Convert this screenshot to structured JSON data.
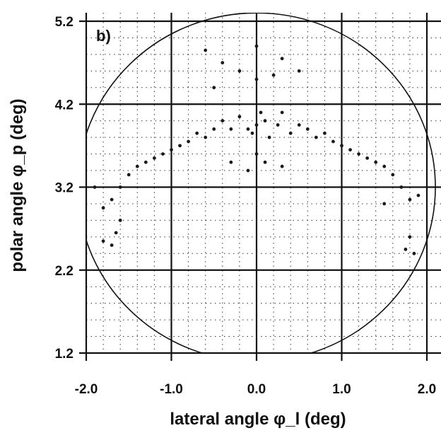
{
  "chart_data": {
    "type": "scatter",
    "panel_label": "b)",
    "xlabel": "lateral angle φ_l (deg)",
    "ylabel": "polar angle φ_p (deg)",
    "xlim": [
      -2.0,
      2.0
    ],
    "ylim": [
      1.2,
      5.2
    ],
    "x_ticks": [
      "-2.0",
      "-1.0",
      "0.0",
      "1.0",
      "2.0"
    ],
    "y_ticks": [
      "1.2",
      "2.2",
      "3.2",
      "4.2",
      "5.2"
    ],
    "major_grid": true,
    "minor_grid": "dotted",
    "circle": {
      "center": [
        0.0,
        3.2
      ],
      "radius": 2.1
    },
    "point_color": "#1a1a1a",
    "line_color": "#111111",
    "series": [
      {
        "values": [
          [
            0.0,
            3.95
          ],
          [
            0.1,
            4.0
          ],
          [
            -0.1,
            3.9
          ],
          [
            0.05,
            4.1
          ],
          [
            -0.05,
            3.85
          ],
          [
            0.15,
            3.8
          ],
          [
            -0.2,
            4.05
          ],
          [
            0.25,
            3.95
          ],
          [
            -0.3,
            3.9
          ],
          [
            0.3,
            4.1
          ],
          [
            -0.4,
            4.0
          ],
          [
            0.4,
            3.85
          ],
          [
            -0.5,
            3.9
          ],
          [
            0.5,
            3.95
          ],
          [
            -0.6,
            3.8
          ],
          [
            0.6,
            3.9
          ],
          [
            -0.7,
            3.85
          ],
          [
            0.7,
            3.8
          ],
          [
            -0.8,
            3.75
          ],
          [
            0.8,
            3.85
          ],
          [
            -0.9,
            3.7
          ],
          [
            0.9,
            3.75
          ],
          [
            -1.0,
            3.65
          ],
          [
            1.0,
            3.7
          ],
          [
            -1.1,
            3.6
          ],
          [
            1.1,
            3.65
          ],
          [
            -1.2,
            3.55
          ],
          [
            1.2,
            3.6
          ],
          [
            -1.3,
            3.5
          ],
          [
            1.3,
            3.55
          ],
          [
            -1.4,
            3.45
          ],
          [
            1.4,
            3.5
          ],
          [
            -1.5,
            3.35
          ],
          [
            1.5,
            3.45
          ],
          [
            -1.6,
            3.2
          ],
          [
            1.6,
            3.35
          ],
          [
            -1.7,
            3.05
          ],
          [
            1.7,
            3.2
          ],
          [
            -1.8,
            2.95
          ],
          [
            1.8,
            3.05
          ],
          [
            -1.9,
            3.2
          ],
          [
            1.9,
            3.1
          ],
          [
            0.0,
            4.5
          ],
          [
            -0.2,
            4.6
          ],
          [
            0.2,
            4.55
          ],
          [
            -0.4,
            4.7
          ],
          [
            0.3,
            4.75
          ],
          [
            -0.6,
            4.85
          ],
          [
            0.0,
            4.9
          ],
          [
            0.5,
            4.6
          ],
          [
            -0.5,
            4.4
          ],
          [
            0.1,
            3.5
          ],
          [
            -0.1,
            3.4
          ],
          [
            0.3,
            3.45
          ],
          [
            -0.3,
            3.5
          ],
          [
            1.5,
            3.0
          ],
          [
            -1.6,
            2.8
          ],
          [
            1.8,
            2.6
          ],
          [
            -1.8,
            2.55
          ],
          [
            1.75,
            2.45
          ],
          [
            -1.7,
            2.5
          ],
          [
            1.85,
            2.4
          ],
          [
            -1.65,
            2.65
          ],
          [
            0.0,
            3.6
          ]
        ]
      }
    ]
  }
}
